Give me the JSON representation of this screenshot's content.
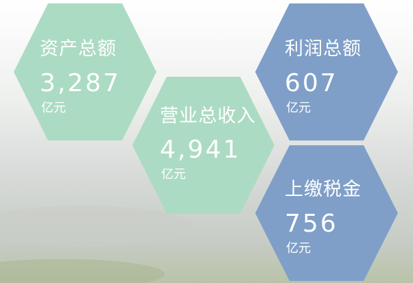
{
  "items": [
    {
      "label": "资产总额",
      "value": "3,287",
      "unit": "亿元"
    },
    {
      "label": "营业总收入",
      "value": "4,941",
      "unit": "亿元"
    },
    {
      "label": "利润总额",
      "value": "607",
      "unit": "亿元"
    },
    {
      "label": "上缴税金",
      "value": "756",
      "unit": "亿元"
    }
  ]
}
